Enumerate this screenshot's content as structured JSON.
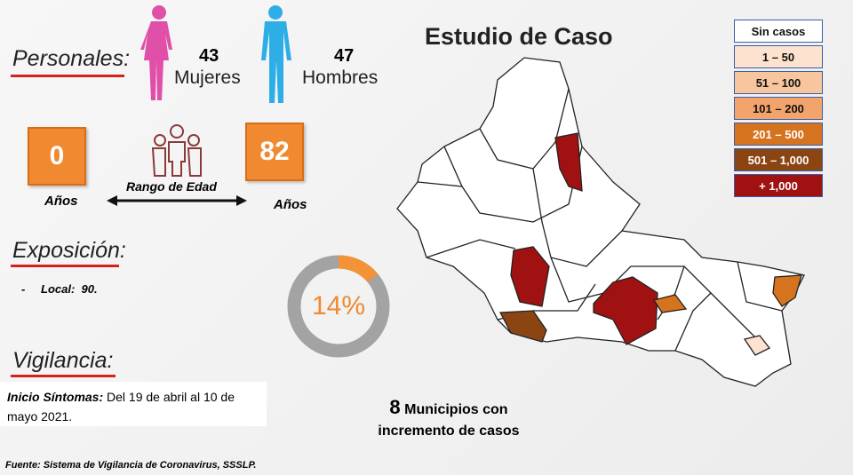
{
  "title": "Estudio de Caso",
  "personales": {
    "heading": "Personales:",
    "mujeres": {
      "count": 43,
      "label": "Mujeres"
    },
    "hombres": {
      "count": 47,
      "label": "Hombres"
    }
  },
  "edad": {
    "min": 0,
    "min_label": "Años",
    "max": 82,
    "max_label": "Años",
    "range_label": "Rango de Edad"
  },
  "exposicion": {
    "heading": "Exposición:",
    "bullet": "-",
    "text": "Local:  90."
  },
  "vigilancia": {
    "heading": "Vigilancia:",
    "label": "Inicio Síntomas:",
    "text": "Del 19 de abril al 10 de mayo 2021."
  },
  "donut": {
    "value": 14,
    "label": "14%"
  },
  "municipios": {
    "count": 8,
    "lines": [
      "Municipios con",
      "incremento de casos"
    ]
  },
  "legend": [
    {
      "label": "Sin casos",
      "color": "#ffffff"
    },
    {
      "label": "1 – 50",
      "color": "#fde3cf"
    },
    {
      "label": "51 – 100",
      "color": "#f8c69e"
    },
    {
      "label": "101 – 200",
      "color": "#f3a46c"
    },
    {
      "label": "201 – 500",
      "color": "#d6731f"
    },
    {
      "label": "501 – 1,000",
      "color": "#8b4513"
    },
    {
      "label": "+ 1,000",
      "color": "#a01212"
    }
  ],
  "source": "Fuente: Sistema de Vigilancia de Coronavirus, SSSLP."
}
